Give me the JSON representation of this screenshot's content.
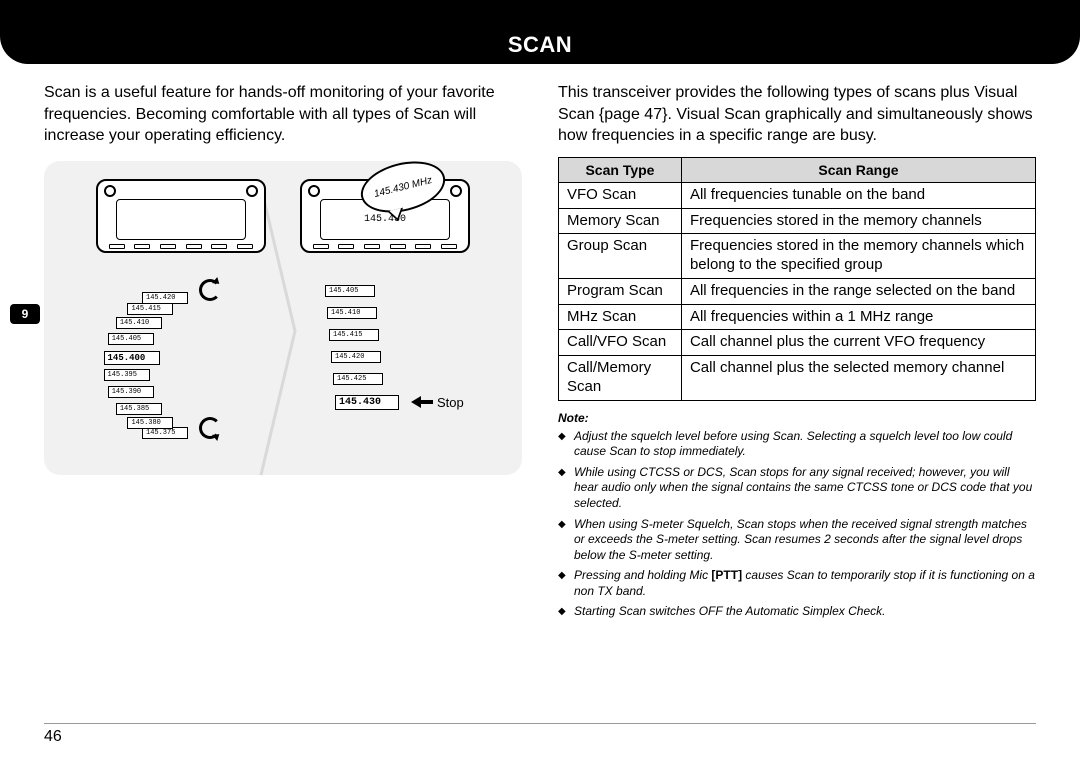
{
  "header": {
    "title": "SCAN"
  },
  "section_badge": "9",
  "page_number": "46",
  "left": {
    "intro": "Scan is a useful feature for hands-off monitoring of your favorite frequencies.  Becoming comfortable with all types of Scan will increase your operating efficiency.",
    "bubble_text": "145.430 MHz",
    "radio_display": "145.430",
    "stop_label": "Stop",
    "freqs_left": [
      "145.375",
      "145.380",
      "145.385",
      "145.390",
      "145.395",
      "145.400",
      "145.405",
      "145.410",
      "145.415",
      "145.420"
    ],
    "freqs_right_center": "145.430",
    "freqs_right": [
      "145.405",
      "145.410",
      "145.415",
      "145.420",
      "145.425",
      "145.430"
    ]
  },
  "right": {
    "types_intro": "This transceiver provides the following types of scans plus Visual Scan {page 47}.  Visual Scan graphically and simultaneously shows how frequencies in a specific range are busy.",
    "table": {
      "headers": [
        "Scan Type",
        "Scan Range"
      ],
      "rows": [
        [
          "VFO Scan",
          "All frequencies tunable on the band"
        ],
        [
          "Memory Scan",
          "Frequencies stored in the memory channels"
        ],
        [
          "Group Scan",
          "Frequencies stored in the memory channels which belong to the specified group"
        ],
        [
          "Program Scan",
          "All frequencies in the range selected on the band"
        ],
        [
          "MHz Scan",
          "All frequencies within a 1 MHz range"
        ],
        [
          "Call/VFO Scan",
          "Call channel plus the current VFO frequency"
        ],
        [
          "Call/Memory Scan",
          "Call channel plus the selected memory channel"
        ]
      ]
    },
    "note_label": "Note:",
    "notes": [
      "Adjust the squelch level before using Scan.  Selecting a squelch level too low could cause Scan to stop immediately.",
      "While using CTCSS or DCS, Scan stops for any signal received; however, you will hear audio only when the signal contains the same CTCSS tone or DCS code that you selected.",
      "When using S-meter Squelch, Scan stops when the received signal strength matches or exceeds the S-meter setting.  Scan resumes 2 seconds after the signal level drops below the S-meter setting.",
      "Pressing and holding Mic [PTT] causes Scan to temporarily stop if it is functioning on a non TX band.",
      "Starting Scan switches OFF the Automatic Simplex Check."
    ]
  }
}
